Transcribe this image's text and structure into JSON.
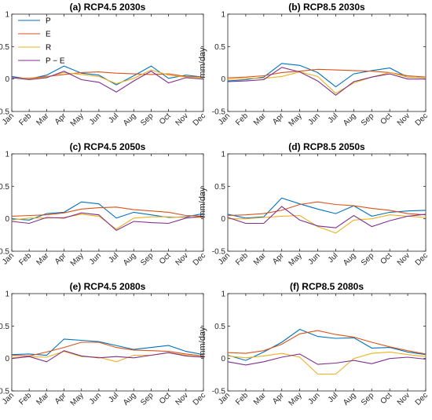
{
  "colors": {
    "P": "#0072BD",
    "E": "#D95319",
    "R": "#EDB120",
    "P_minus_E": "#7E2F8E"
  },
  "chart_data": [
    {
      "type": "line",
      "title": "(a) RCP4.5 2030s",
      "ylabel": "mm/day",
      "ylim": [
        -0.5,
        1
      ],
      "yticks": [
        "1",
        "0.5",
        "0",
        "-0.5"
      ],
      "categories": [
        "Jan",
        "Feb",
        "Mar",
        "Apr",
        "May",
        "Jun",
        "Jul",
        "Aug",
        "Sep",
        "Oct",
        "Nov",
        "Dec"
      ],
      "legend": {
        "position": "top-left",
        "entries": [
          "P",
          "E",
          "R",
          "P − E"
        ]
      },
      "series": [
        {
          "name": "P",
          "values": [
            0.04,
            0.0,
            0.06,
            0.2,
            0.09,
            0.06,
            -0.09,
            0.05,
            0.2,
            0.01,
            0.06,
            0.03
          ]
        },
        {
          "name": "E",
          "values": [
            0.02,
            0.01,
            0.04,
            0.07,
            0.1,
            0.11,
            0.09,
            0.08,
            0.07,
            0.08,
            0.04,
            0.03
          ]
        },
        {
          "name": "R",
          "values": [
            0.02,
            0.0,
            0.03,
            0.1,
            0.07,
            0.04,
            -0.07,
            0.01,
            0.14,
            0.06,
            0.03,
            0.02
          ]
        },
        {
          "name": "P − E",
          "values": [
            0.02,
            -0.01,
            0.02,
            0.12,
            -0.01,
            -0.05,
            -0.2,
            -0.03,
            0.12,
            -0.06,
            0.02,
            0.0
          ]
        }
      ]
    },
    {
      "type": "line",
      "title": "(b) RCP8.5 2030s",
      "ylabel": "mm/day",
      "ylim": [
        -0.5,
        1
      ],
      "yticks": [
        "1",
        "0.5",
        "0",
        "-0.5"
      ],
      "categories": [
        "Jan",
        "Feb",
        "Mar",
        "Apr",
        "May",
        "Jun",
        "Jul",
        "Aug",
        "Sep",
        "Oct",
        "Nov",
        "Dec"
      ],
      "series": [
        {
          "name": "P",
          "values": [
            -0.03,
            -0.01,
            0.03,
            0.24,
            0.21,
            0.1,
            -0.12,
            0.08,
            0.13,
            0.17,
            0.03,
            0.02
          ]
        },
        {
          "name": "E",
          "values": [
            0.02,
            0.03,
            0.05,
            0.1,
            0.12,
            0.15,
            0.14,
            0.13,
            0.12,
            0.1,
            0.05,
            0.03
          ]
        },
        {
          "name": "R",
          "values": [
            0.0,
            0.01,
            0.01,
            0.04,
            0.11,
            0.04,
            -0.22,
            -0.06,
            0.03,
            0.1,
            0.03,
            0.02
          ]
        },
        {
          "name": "P − E",
          "values": [
            -0.04,
            -0.03,
            -0.01,
            0.18,
            0.11,
            -0.03,
            -0.25,
            -0.04,
            0.03,
            0.08,
            0.0,
            0.0
          ]
        }
      ]
    },
    {
      "type": "line",
      "title": "(c) RCP4.5 2050s",
      "ylabel": "mm/day",
      "ylim": [
        -0.5,
        1
      ],
      "yticks": [
        "1",
        "0.5",
        "0",
        "-0.5"
      ],
      "categories": [
        "Jan",
        "Feb",
        "Mar",
        "Apr",
        "May",
        "Jun",
        "Jul",
        "Aug",
        "Sep",
        "Oct",
        "Nov",
        "Dec"
      ],
      "series": [
        {
          "name": "P",
          "values": [
            0.0,
            -0.02,
            0.08,
            0.1,
            0.26,
            0.23,
            0.01,
            0.1,
            0.06,
            0.02,
            0.03,
            0.08
          ]
        },
        {
          "name": "E",
          "values": [
            0.04,
            0.05,
            0.06,
            0.09,
            0.15,
            0.17,
            0.18,
            0.14,
            0.12,
            0.1,
            0.05,
            0.04
          ]
        },
        {
          "name": "R",
          "values": [
            -0.02,
            0.01,
            0.01,
            0.02,
            0.07,
            0.04,
            -0.16,
            0.01,
            0.03,
            0.03,
            0.02,
            0.02
          ]
        },
        {
          "name": "P − E",
          "values": [
            -0.04,
            -0.07,
            0.02,
            0.01,
            0.09,
            0.06,
            -0.18,
            -0.04,
            -0.06,
            -0.07,
            0.01,
            0.04
          ]
        }
      ]
    },
    {
      "type": "line",
      "title": "(d) RCP8.5 2050s",
      "ylabel": "mm/day",
      "ylim": [
        -0.5,
        1
      ],
      "yticks": [
        "1",
        "0.5",
        "0",
        "-0.5"
      ],
      "categories": [
        "Jan",
        "Feb",
        "Mar",
        "Apr",
        "May",
        "Jun",
        "Jul",
        "Aug",
        "Sep",
        "Oct",
        "Nov",
        "Dec"
      ],
      "series": [
        {
          "name": "P",
          "values": [
            0.07,
            0.01,
            0.03,
            0.32,
            0.23,
            0.15,
            0.08,
            0.2,
            0.04,
            0.1,
            0.12,
            0.13
          ]
        },
        {
          "name": "E",
          "values": [
            0.05,
            0.06,
            0.08,
            0.13,
            0.22,
            0.26,
            0.22,
            0.2,
            0.16,
            0.13,
            0.08,
            0.06
          ]
        },
        {
          "name": "R",
          "values": [
            0.0,
            0.0,
            0.02,
            0.04,
            0.05,
            -0.12,
            -0.22,
            -0.02,
            0.0,
            0.06,
            0.04,
            0.02
          ]
        },
        {
          "name": "P − E",
          "values": [
            0.02,
            -0.07,
            -0.07,
            0.19,
            -0.02,
            -0.11,
            -0.14,
            0.05,
            -0.12,
            -0.03,
            0.04,
            0.07
          ]
        }
      ]
    },
    {
      "type": "line",
      "title": "(e) RCP4.5 2080s",
      "ylabel": "mm/day",
      "ylim": [
        -0.5,
        1
      ],
      "yticks": [
        "1",
        "0.5",
        "0",
        "-0.5"
      ],
      "categories": [
        "Jan",
        "Feb",
        "Mar",
        "Apr",
        "May",
        "Jun",
        "Jul",
        "Aug",
        "Sep",
        "Oct",
        "Nov",
        "Dec"
      ],
      "series": [
        {
          "name": "P",
          "values": [
            0.06,
            0.07,
            0.05,
            0.3,
            0.28,
            0.26,
            0.2,
            0.14,
            0.17,
            0.2,
            0.11,
            0.06
          ]
        },
        {
          "name": "E",
          "values": [
            0.05,
            0.04,
            0.1,
            0.17,
            0.25,
            0.25,
            0.17,
            0.13,
            0.12,
            0.11,
            0.07,
            0.04
          ]
        },
        {
          "name": "R",
          "values": [
            0.01,
            0.03,
            0.02,
            0.11,
            0.03,
            0.02,
            -0.05,
            0.05,
            0.05,
            0.09,
            0.05,
            0.02
          ]
        },
        {
          "name": "P − E",
          "values": [
            0.0,
            0.03,
            -0.05,
            0.12,
            0.04,
            0.01,
            0.03,
            0.01,
            0.05,
            0.09,
            0.04,
            0.02
          ]
        }
      ]
    },
    {
      "type": "line",
      "title": "(f) RCP8.5 2080s",
      "ylabel": "mm/day",
      "ylim": [
        -0.5,
        1
      ],
      "yticks": [
        "1",
        "0.5",
        "0",
        "-0.5"
      ],
      "categories": [
        "Jan",
        "Feb",
        "Mar",
        "Apr",
        "May",
        "Jun",
        "Jul",
        "Aug",
        "Sep",
        "Oct",
        "Nov",
        "Dec"
      ],
      "series": [
        {
          "name": "P",
          "values": [
            0.05,
            -0.03,
            0.1,
            0.25,
            0.45,
            0.34,
            0.31,
            0.32,
            0.16,
            0.17,
            0.1,
            0.06
          ]
        },
        {
          "name": "E",
          "values": [
            0.09,
            0.08,
            0.12,
            0.22,
            0.38,
            0.43,
            0.37,
            0.33,
            0.25,
            0.18,
            0.12,
            0.07
          ]
        },
        {
          "name": "R",
          "values": [
            0.04,
            0.01,
            0.04,
            0.08,
            0.02,
            -0.24,
            -0.24,
            0.0,
            0.08,
            0.1,
            0.06,
            0.03
          ]
        },
        {
          "name": "P − E",
          "values": [
            -0.05,
            -0.1,
            -0.05,
            0.02,
            0.07,
            -0.09,
            -0.07,
            -0.03,
            -0.08,
            0.0,
            0.02,
            -0.01
          ]
        }
      ]
    }
  ]
}
